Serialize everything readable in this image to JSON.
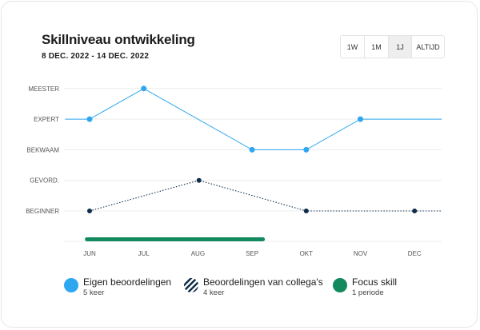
{
  "header": {
    "title": "Skillniveau ontwikkeling",
    "date_range": "8 DEC. 2022 - 14 DEC. 2022"
  },
  "range_buttons": [
    {
      "label": "1W",
      "active": false
    },
    {
      "label": "1M",
      "active": false
    },
    {
      "label": "1J",
      "active": true
    },
    {
      "label": "ALTIJD",
      "active": false
    }
  ],
  "chart_data": {
    "type": "line",
    "title": "Skillniveau ontwikkeling",
    "subtitle": "8 DEC. 2022 - 14 DEC. 2022",
    "x_categories": [
      "JUN",
      "JUL",
      "AUG",
      "SEP",
      "OKT",
      "NOV",
      "DEC"
    ],
    "y_levels": [
      "BEGINNER",
      "GEVORD.",
      "BEKWAAM",
      "EXPERT",
      "MEESTER"
    ],
    "series": [
      {
        "name": "Eigen beoordelingen",
        "style": "solid",
        "color": "#2ea7f0",
        "points": [
          {
            "x": -0.45,
            "y": 3,
            "marker": false
          },
          {
            "x": 0,
            "y": 3,
            "marker": true
          },
          {
            "x": 1,
            "y": 4,
            "marker": true
          },
          {
            "x": 3,
            "y": 2,
            "marker": true
          },
          {
            "x": 4,
            "y": 2,
            "marker": true
          },
          {
            "x": 5,
            "y": 3,
            "marker": true
          },
          {
            "x": 6.5,
            "y": 3,
            "marker": false
          }
        ]
      },
      {
        "name": "Beoordelingen van collega's",
        "style": "dotted",
        "color": "#0f2d4a",
        "points": [
          {
            "x": 0,
            "y": 0,
            "marker": true
          },
          {
            "x": 2.02,
            "y": 1,
            "marker": true
          },
          {
            "x": 4,
            "y": 0,
            "marker": true
          },
          {
            "x": 6,
            "y": 0,
            "marker": true
          },
          {
            "x": 6.5,
            "y": 0,
            "marker": false
          }
        ]
      }
    ],
    "focus_period": {
      "name": "Focus skill",
      "x_start": -0.05,
      "x_end": 3.2,
      "color": "#128a5e"
    }
  },
  "legend": [
    {
      "label": "Eigen beoordelingen",
      "sub": "5 keer",
      "swatch": "solid",
      "color": "#2ea7f0"
    },
    {
      "label": "Beoordelingen van collega's",
      "sub": "4 keer",
      "swatch": "striped",
      "color": "#0f2d4a"
    },
    {
      "label": "Focus skill",
      "sub": "1 periode",
      "swatch": "solid",
      "color": "#128a5e"
    }
  ]
}
